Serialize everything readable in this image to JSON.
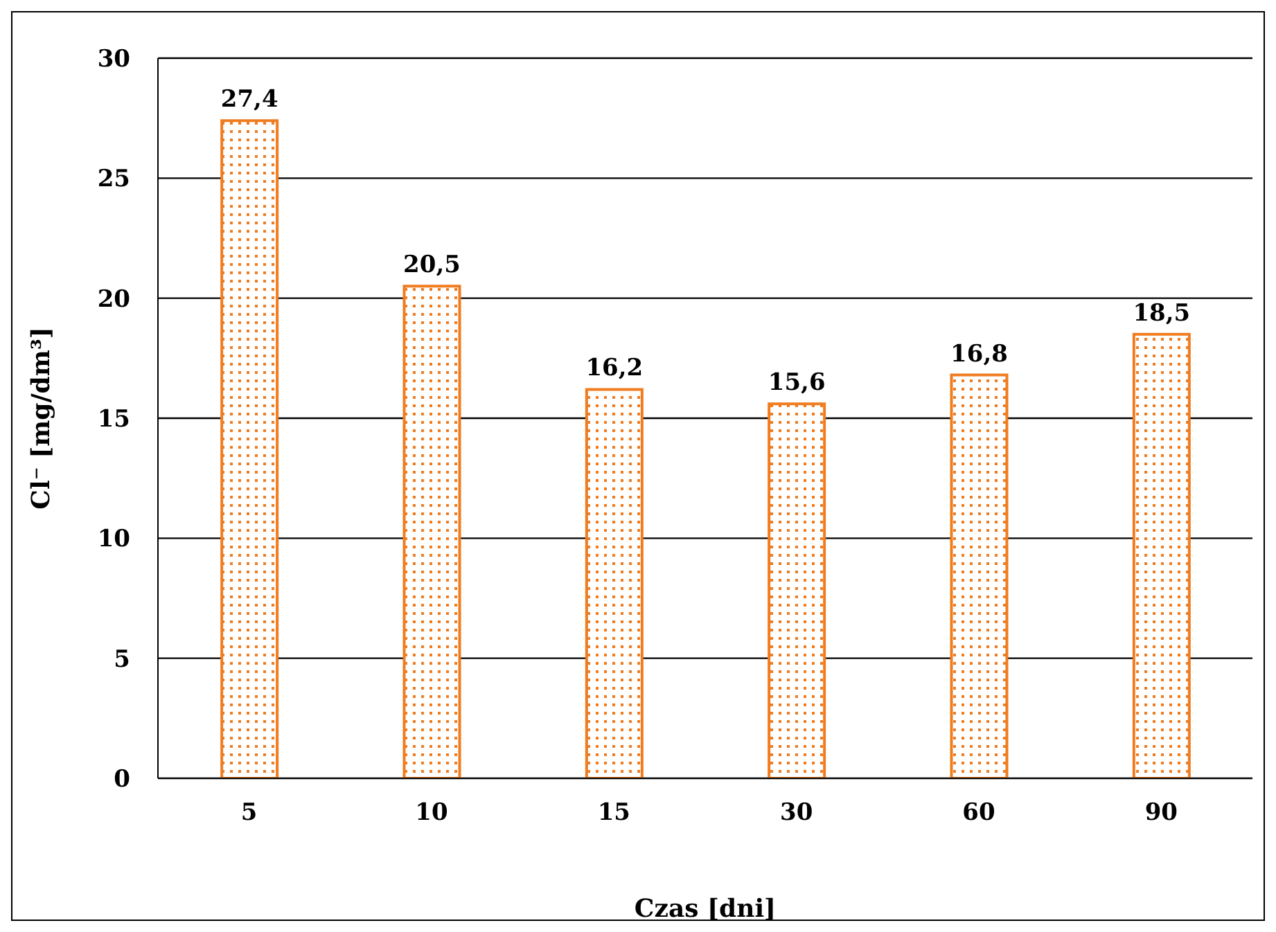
{
  "chart_data": {
    "type": "bar",
    "categories": [
      "5",
      "10",
      "15",
      "30",
      "60",
      "90"
    ],
    "values": [
      27.4,
      20.5,
      16.2,
      15.6,
      16.8,
      18.5
    ],
    "value_labels": [
      "27,4",
      "20,5",
      "16,2",
      "15,6",
      "16,8",
      "18,5"
    ],
    "color": "#f07c20",
    "xlabel": "Czas [dni]",
    "ylabel": "Cl⁻ [mg/dm³]",
    "ylim": [
      0,
      30
    ],
    "yticks": [
      0,
      5,
      10,
      15,
      20,
      25,
      30
    ],
    "grid": "y"
  }
}
